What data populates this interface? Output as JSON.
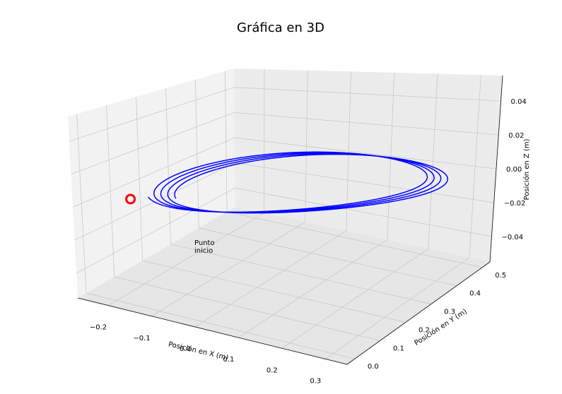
{
  "chart_data": {
    "type": "line",
    "title": "Gráfica en 3D",
    "xlabel": "Posición en X (m)",
    "ylabel": "Posición en Y (m)",
    "zlabel": "Posición en Z (m)",
    "xticks": [
      "−0.2",
      "−0.1",
      "0.0",
      "0.1",
      "0.2",
      "0.3"
    ],
    "yticks": [
      "0.0",
      "0.1",
      "0.2",
      "0.3",
      "0.4",
      "0.5"
    ],
    "zticks": [
      "−0.04",
      "−0.02",
      "0.00",
      "0.02",
      "0.04"
    ],
    "xlim": [
      -0.27,
      0.35
    ],
    "ylim": [
      -0.03,
      0.53
    ],
    "zlim": [
      -0.055,
      0.055
    ],
    "grid": true,
    "line_color": "#0000ff",
    "series": [
      {
        "type": "orbit",
        "turns": 4,
        "center_x": 0.04,
        "center_y": 0.25,
        "center_step": 0.016,
        "radius": 0.27,
        "z": 0.0
      }
    ],
    "start_point": {
      "x": -0.19,
      "y": 0.05,
      "z": 0.0,
      "color": "#ff0000",
      "label_line1": "Punto",
      "label_line2": "inicio"
    }
  }
}
